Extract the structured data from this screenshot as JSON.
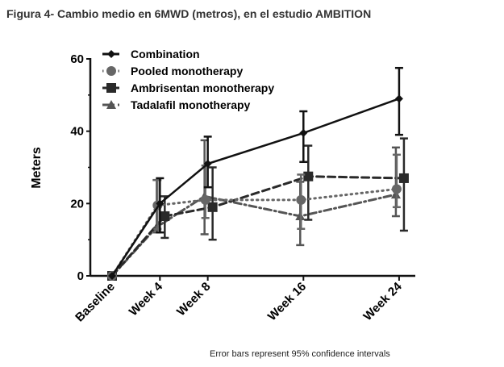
{
  "title": "Figura 4- Cambio medio en 6MWD (metros), en el estudio AMBITION",
  "note": "Error bars represent 95% confidence intervals",
  "chart_data": {
    "type": "line",
    "title": "Figura 4- Cambio medio en 6MWD (metros), en el estudio AMBITION",
    "xlabel": "",
    "ylabel": "Meters",
    "ylim": [
      0,
      60
    ],
    "yticks": [
      0,
      20,
      40,
      60
    ],
    "x_weeks": [
      0,
      4,
      8,
      16,
      24
    ],
    "categories": [
      "Baseline",
      "Week 4",
      "Week 8",
      "Week 16",
      "Week 24"
    ],
    "legend_position": "top-left",
    "series": [
      {
        "name": "Combination",
        "color": "#111111",
        "dash": "solid",
        "marker": "diamond",
        "values": [
          0,
          20,
          31,
          39.5,
          49
        ],
        "ci_low": [
          0,
          12,
          24.5,
          31.5,
          39
        ],
        "ci_high": [
          0,
          27,
          38.5,
          45.5,
          57.5
        ]
      },
      {
        "name": "Pooled monotherapy",
        "color": "#666666",
        "dash": "dotted",
        "marker": "circle",
        "values": [
          0,
          19.5,
          21,
          21,
          24
        ],
        "ci_low": [
          0,
          13,
          16,
          13,
          19
        ],
        "ci_high": [
          0,
          26.5,
          30.5,
          28,
          33.5
        ]
      },
      {
        "name": "Ambrisentan monotherapy",
        "color": "#2a2a2a",
        "dash": "dashed",
        "marker": "square",
        "values": [
          0,
          16.5,
          19,
          27.5,
          27
        ],
        "ci_low": [
          0,
          10.5,
          10,
          15.5,
          12.5
        ],
        "ci_high": [
          0,
          22,
          30,
          36,
          38
        ]
      },
      {
        "name": "Tadalafil monotherapy",
        "color": "#555555",
        "dash": "dashdot",
        "marker": "triangle",
        "values": [
          0,
          13.5,
          22,
          16.5,
          22.5
        ],
        "ci_low": [
          0,
          12,
          11.5,
          8.5,
          16.5
        ],
        "ci_high": [
          0,
          26.5,
          37.5,
          26,
          35.5
        ]
      }
    ]
  }
}
